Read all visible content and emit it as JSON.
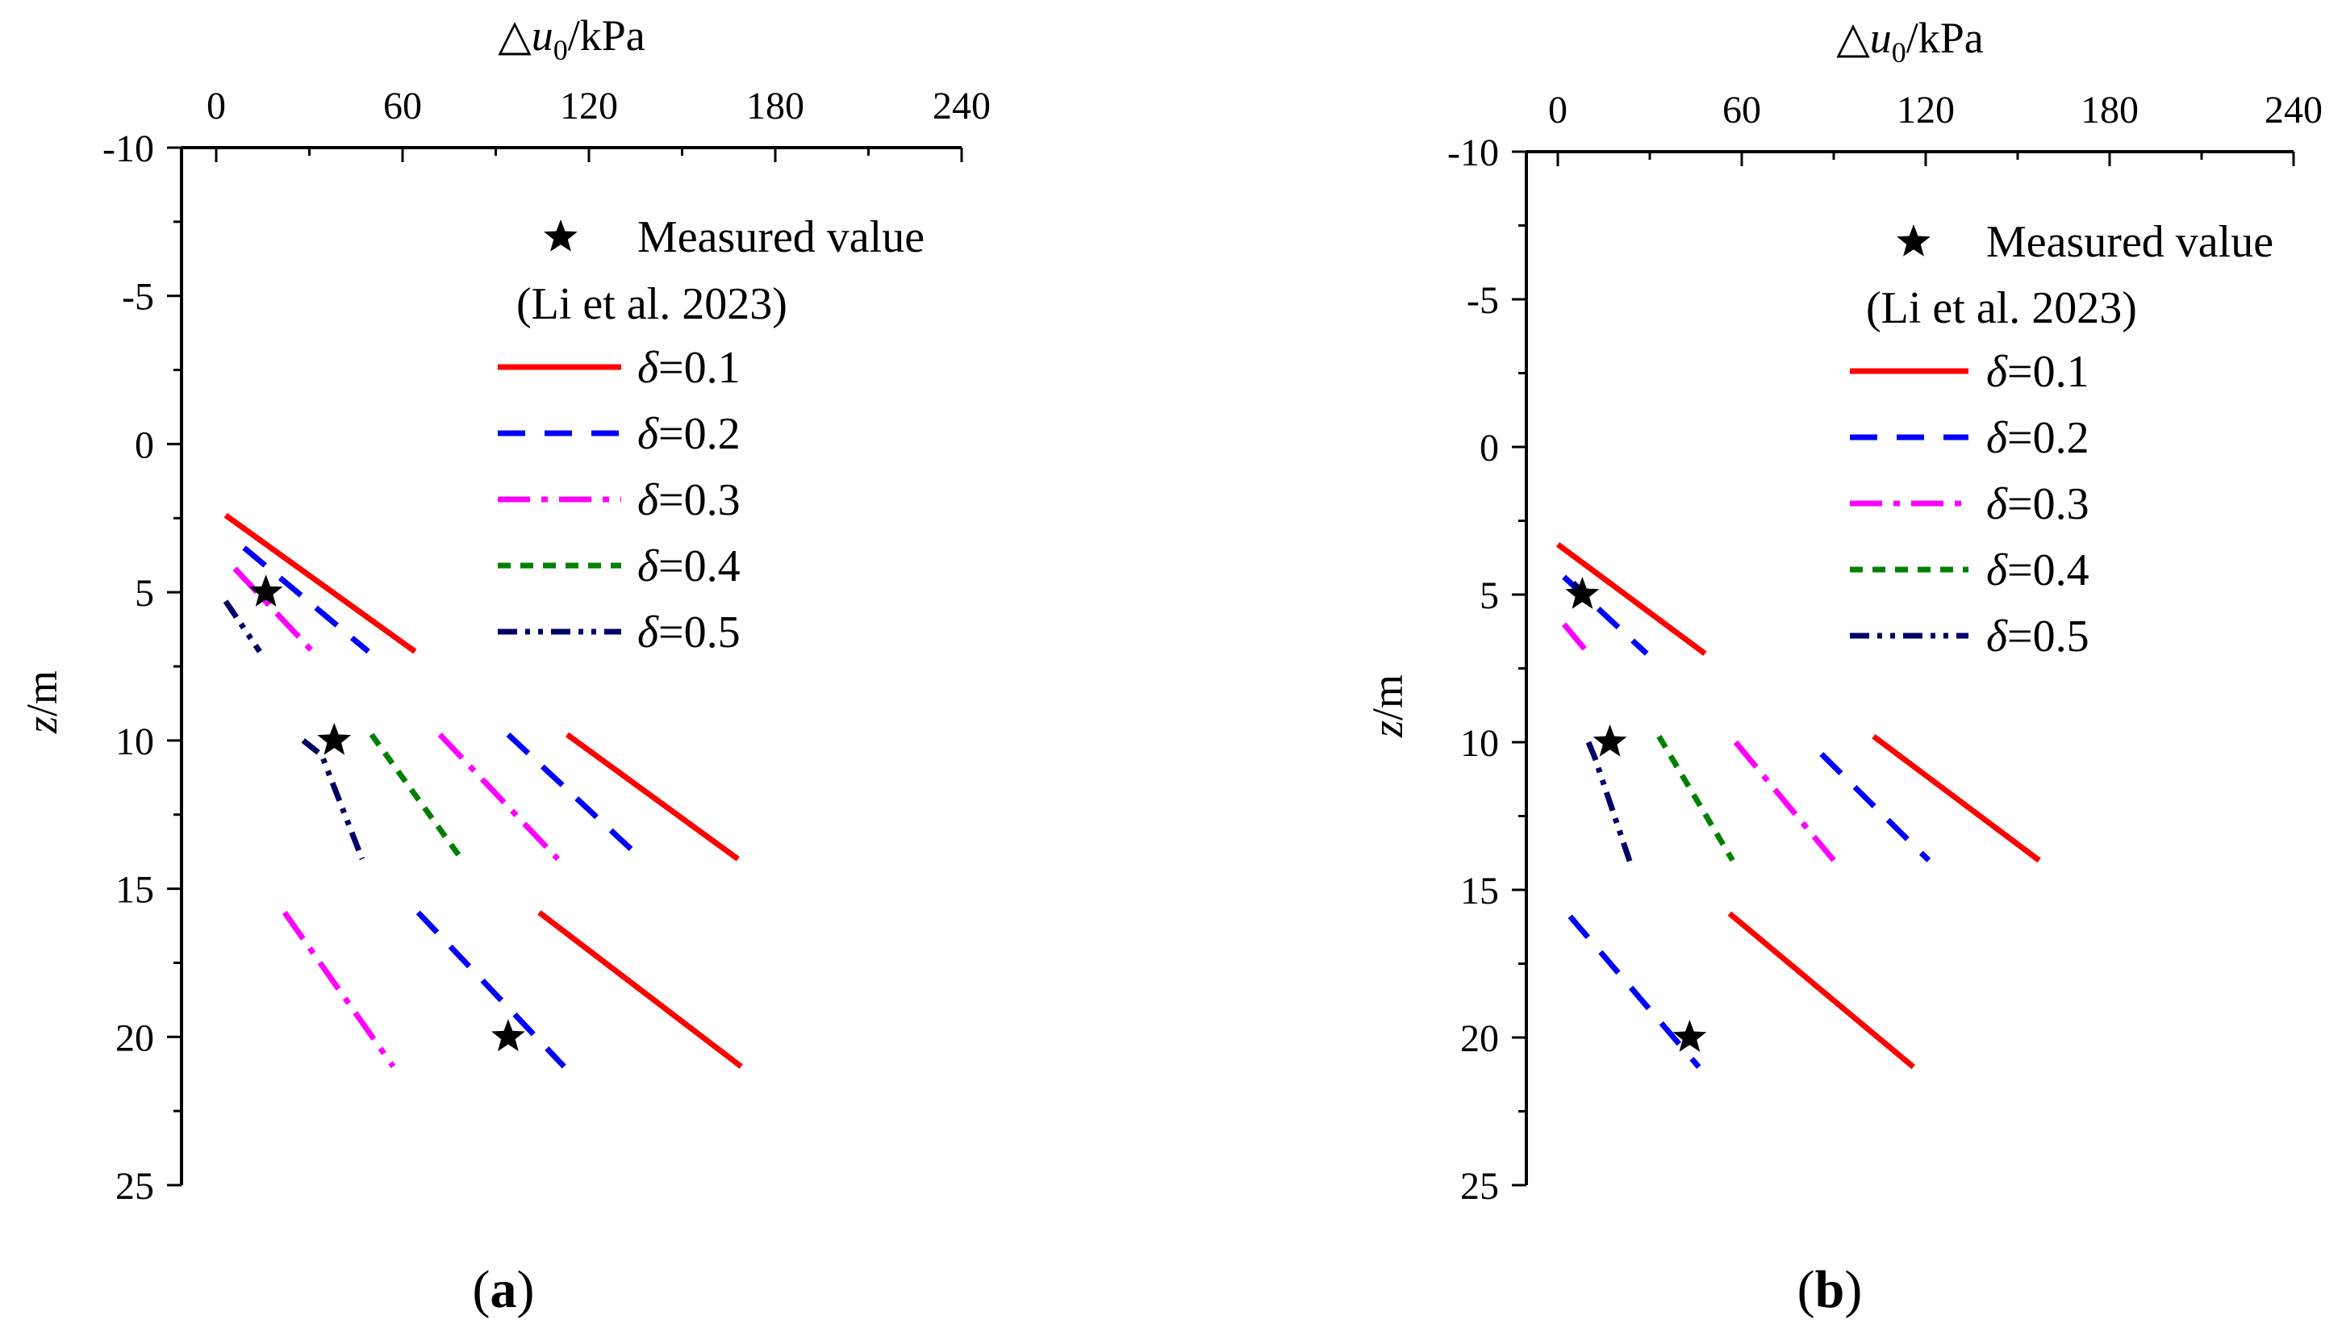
{
  "colors": {
    "d01": "#ff0000",
    "d02": "#0000ff",
    "d03": "#ff00ff",
    "d04": "#008000",
    "d05": "#000066",
    "measured": "#000000"
  },
  "chart_data": [
    {
      "type": "line",
      "panel_label": "(a)",
      "panel_letter": "a",
      "xlabel": "△u0/kPa",
      "xlabel_parts": [
        "△",
        "u",
        "0",
        "/kPa"
      ],
      "ylabel": "z/m",
      "ylabel_parts": [
        "z",
        "/m"
      ],
      "xlim": [
        0,
        240
      ],
      "ylim": [
        -10,
        25
      ],
      "y_inverted": true,
      "x_axis_position": "top",
      "xticks": [
        0,
        60,
        120,
        180,
        240
      ],
      "xtick_labels": [
        "0",
        "60",
        "120",
        "180",
        "240"
      ],
      "yticks": [
        -10,
        -5,
        0,
        5,
        10,
        15,
        20,
        25
      ],
      "ytick_labels": [
        "-10",
        "-5",
        "0",
        "5",
        "10",
        "15",
        "20",
        "25"
      ],
      "legend": {
        "position": "top-right",
        "measured_label": "Measured value",
        "measured_ref": "(Li et al. 2023)",
        "entries": [
          {
            "key": "d01",
            "symbol": "δ",
            "text": "=0.1"
          },
          {
            "key": "d02",
            "symbol": "δ",
            "text": "=0.2"
          },
          {
            "key": "d03",
            "symbol": "δ",
            "text": "=0.3"
          },
          {
            "key": "d04",
            "symbol": "δ",
            "text": "=0.4"
          },
          {
            "key": "d05",
            "symbol": "δ",
            "text": "=0.5"
          }
        ]
      },
      "series": [
        {
          "key": "d01",
          "name": "δ=0.1",
          "x": [
            3,
            64
          ],
          "z": [
            2.4,
            7
          ]
        },
        {
          "key": "d02",
          "name": "δ=0.2",
          "x": [
            9,
            49
          ],
          "z": [
            3.5,
            7
          ]
        },
        {
          "key": "d03",
          "name": "δ=0.3",
          "x": [
            6,
            31
          ],
          "z": [
            4.2,
            7
          ]
        },
        {
          "key": "d05",
          "name": "δ=0.5",
          "x": [
            3,
            14
          ],
          "z": [
            5.3,
            7
          ]
        },
        {
          "key": "d01",
          "name": "δ=0.1",
          "x": [
            113,
            168
          ],
          "z": [
            9.8,
            14
          ]
        },
        {
          "key": "d02",
          "name": "δ=0.2",
          "x": [
            94,
            137
          ],
          "z": [
            9.8,
            14
          ]
        },
        {
          "key": "d03",
          "name": "δ=0.3",
          "x": [
            72,
            110
          ],
          "z": [
            9.8,
            14
          ]
        },
        {
          "key": "d04",
          "name": "δ=0.4",
          "x": [
            50,
            79
          ],
          "z": [
            9.8,
            14
          ]
        },
        {
          "key": "d05",
          "name": "δ=0.5",
          "x": [
            28,
            34,
            47
          ],
          "z": [
            10,
            10.5,
            14
          ]
        },
        {
          "key": "d01",
          "name": "δ=0.1",
          "x": [
            104,
            169
          ],
          "z": [
            15.8,
            21
          ]
        },
        {
          "key": "d02",
          "name": "δ=0.2",
          "x": [
            65,
            112
          ],
          "z": [
            15.8,
            21
          ]
        },
        {
          "key": "d03",
          "name": "δ=0.3",
          "x": [
            22,
            57
          ],
          "z": [
            15.8,
            21
          ]
        }
      ],
      "measured_points": [
        {
          "x": 16,
          "z": 5
        },
        {
          "x": 38,
          "z": 10
        },
        {
          "x": 94,
          "z": 20
        }
      ]
    },
    {
      "type": "line",
      "panel_label": "(b)",
      "panel_letter": "b",
      "xlabel": "△u0/kPa",
      "xlabel_parts": [
        "△",
        "u",
        "0",
        "/kPa"
      ],
      "ylabel": "z/m",
      "ylabel_parts": [
        "z",
        "/m"
      ],
      "xlim": [
        0,
        240
      ],
      "ylim": [
        -10,
        25
      ],
      "y_inverted": true,
      "x_axis_position": "top",
      "xticks": [
        0,
        60,
        120,
        180,
        240
      ],
      "xtick_labels": [
        "0",
        "60",
        "120",
        "180",
        "240"
      ],
      "yticks": [
        -10,
        -5,
        0,
        5,
        10,
        15,
        20,
        25
      ],
      "ytick_labels": [
        "-10",
        "-5",
        "0",
        "5",
        "10",
        "15",
        "20",
        "25"
      ],
      "legend": {
        "position": "top-right",
        "measured_label": "Measured value",
        "measured_ref": "(Li et al. 2023)",
        "entries": [
          {
            "key": "d01",
            "symbol": "δ",
            "text": "=0.1"
          },
          {
            "key": "d02",
            "symbol": "δ",
            "text": "=0.2"
          },
          {
            "key": "d03",
            "symbol": "δ",
            "text": "=0.3"
          },
          {
            "key": "d04",
            "symbol": "δ",
            "text": "=0.4"
          },
          {
            "key": "d05",
            "symbol": "δ",
            "text": "=0.5"
          }
        ]
      },
      "series": [
        {
          "key": "d01",
          "name": "δ=0.1",
          "x": [
            0,
            48
          ],
          "z": [
            3.3,
            7
          ]
        },
        {
          "key": "d02",
          "name": "δ=0.2",
          "x": [
            2,
            29
          ],
          "z": [
            4.4,
            7
          ]
        },
        {
          "key": "d03",
          "name": "δ=0.3",
          "x": [
            2,
            10
          ],
          "z": [
            6,
            7
          ]
        },
        {
          "key": "d05",
          "name": "δ=0.5",
          "x": [
            5,
            11
          ],
          "z": [
            4.6,
            5.2
          ]
        },
        {
          "key": "d01",
          "name": "δ=0.1",
          "x": [
            103,
            157
          ],
          "z": [
            9.8,
            14
          ]
        },
        {
          "key": "d02",
          "name": "δ=0.2",
          "x": [
            86,
            121
          ],
          "z": [
            10.4,
            14
          ]
        },
        {
          "key": "d03",
          "name": "δ=0.3",
          "x": [
            58,
            90
          ],
          "z": [
            10,
            14
          ]
        },
        {
          "key": "d04",
          "name": "δ=0.4",
          "x": [
            33,
            57
          ],
          "z": [
            9.8,
            14
          ]
        },
        {
          "key": "d05",
          "name": "δ=0.5",
          "x": [
            10,
            12,
            24
          ],
          "z": [
            10,
            10.5,
            14.2
          ]
        },
        {
          "key": "d01",
          "name": "δ=0.1",
          "x": [
            56,
            116
          ],
          "z": [
            15.8,
            21
          ]
        },
        {
          "key": "d02",
          "name": "δ=0.2",
          "x": [
            4,
            46
          ],
          "z": [
            15.9,
            21
          ]
        }
      ],
      "measured_points": [
        {
          "x": 8,
          "z": 5
        },
        {
          "x": 17,
          "z": 10
        },
        {
          "x": 43,
          "z": 20
        }
      ]
    }
  ]
}
